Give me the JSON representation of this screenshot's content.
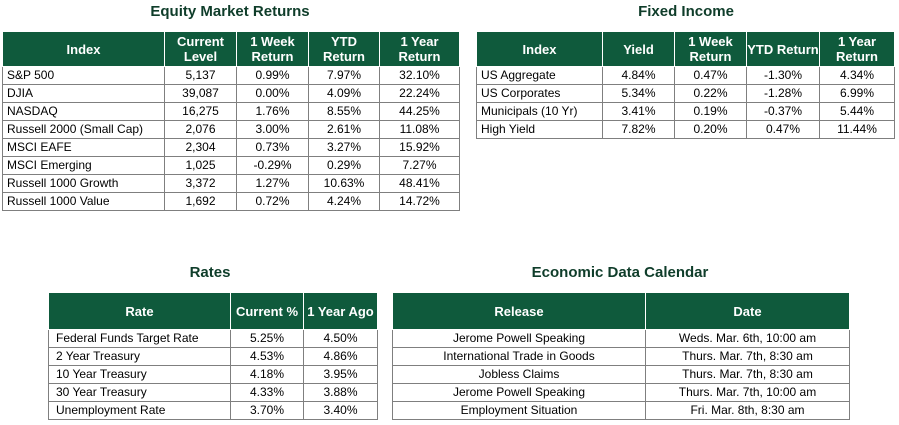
{
  "equity": {
    "title": "Equity Market Returns",
    "headers": [
      "Index",
      "Current Level",
      "1 Week Return",
      "YTD Return",
      "1 Year Return"
    ],
    "rows": [
      [
        "S&P 500",
        "5,137",
        "0.99%",
        "7.97%",
        "32.10%"
      ],
      [
        "DJIA",
        "39,087",
        "0.00%",
        "4.09%",
        "22.24%"
      ],
      [
        "NASDAQ",
        "16,275",
        "1.76%",
        "8.55%",
        "44.25%"
      ],
      [
        "Russell 2000 (Small Cap)",
        "2,076",
        "3.00%",
        "2.61%",
        "11.08%"
      ],
      [
        "MSCI EAFE",
        "2,304",
        "0.73%",
        "3.27%",
        "15.92%"
      ],
      [
        "MSCI Emerging",
        "1,025",
        "-0.29%",
        "0.29%",
        "7.27%"
      ],
      [
        "Russell 1000 Growth",
        "3,372",
        "1.27%",
        "10.63%",
        "48.41%"
      ],
      [
        "Russell 1000 Value",
        "1,692",
        "0.72%",
        "4.24%",
        "14.72%"
      ]
    ]
  },
  "fixed_income": {
    "title": "Fixed Income",
    "headers": [
      "Index",
      "Yield",
      "1 Week Return",
      "YTD Return",
      "1 Year Return"
    ],
    "rows": [
      [
        "US Aggregate",
        "4.84%",
        "0.47%",
        "-1.30%",
        "4.34%"
      ],
      [
        "US Corporates",
        "5.34%",
        "0.22%",
        "-1.28%",
        "6.99%"
      ],
      [
        "Municipals (10 Yr)",
        "3.41%",
        "0.19%",
        "-0.37%",
        "5.44%"
      ],
      [
        "High Yield",
        "7.82%",
        "0.20%",
        "0.47%",
        "11.44%"
      ]
    ]
  },
  "rates": {
    "title": "Rates",
    "headers": [
      "Rate",
      "Current %",
      "1 Year Ago"
    ],
    "rows": [
      [
        "Federal Funds Target Rate",
        "5.25%",
        "4.50%"
      ],
      [
        "2 Year Treasury",
        "4.53%",
        "4.86%"
      ],
      [
        "10 Year Treasury",
        "4.18%",
        "3.95%"
      ],
      [
        "30 Year Treasury",
        "4.33%",
        "3.88%"
      ],
      [
        "Unemployment Rate",
        "3.70%",
        "3.40%"
      ]
    ]
  },
  "calendar": {
    "title": "Economic Data Calendar",
    "headers": [
      "Release",
      "Date"
    ],
    "rows": [
      [
        "Jerome Powell Speaking",
        "Weds. Mar. 6th, 10:00 am"
      ],
      [
        "International Trade in Goods",
        "Thurs. Mar. 7th, 8:30 am"
      ],
      [
        "Jobless Claims",
        "Thurs. Mar. 7th, 8:30 am"
      ],
      [
        "Jerome Powell Speaking",
        "Thurs. Mar. 7th, 10:00 am"
      ],
      [
        "Employment Situation",
        "Fri. Mar. 8th, 8:30 am"
      ]
    ]
  },
  "colors": {
    "header_bg": "#0f5a3c",
    "title_text": "#0f3d2a"
  }
}
